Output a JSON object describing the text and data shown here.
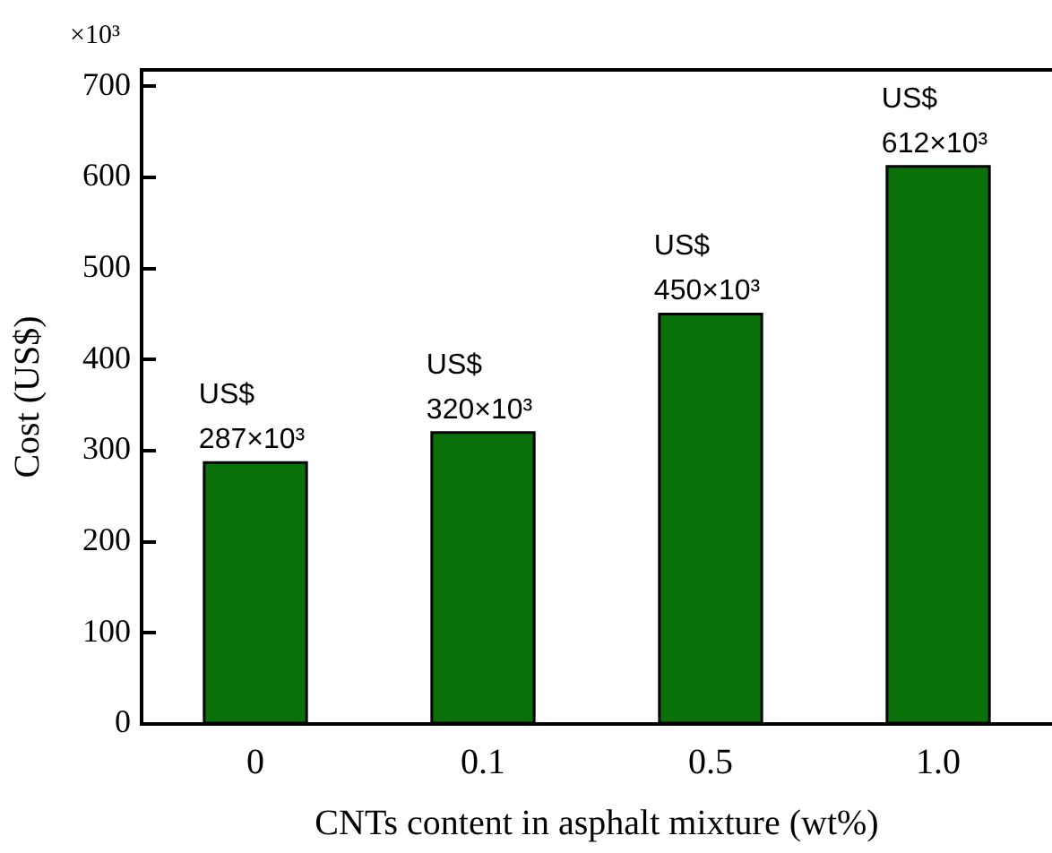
{
  "chart_data": {
    "type": "bar",
    "xlabel": "CNTs content in asphalt mixture (wt%)",
    "ylabel": "Cost (US$)",
    "annotations": [
      "×10³"
    ],
    "categories": [
      "0",
      "0.1",
      "0.5",
      "1.0"
    ],
    "values": [
      287,
      320,
      450,
      612
    ],
    "value_labels": [
      "US$\n287×10³",
      "US$\n320×10³",
      "US$\n450×10³",
      "US$\n612×10³"
    ],
    "color": "#0a700a",
    "ylim": [
      0,
      718
    ],
    "yticks": [
      0,
      100,
      200,
      300,
      400,
      500,
      600,
      700
    ],
    "grid": false,
    "legend": false
  }
}
